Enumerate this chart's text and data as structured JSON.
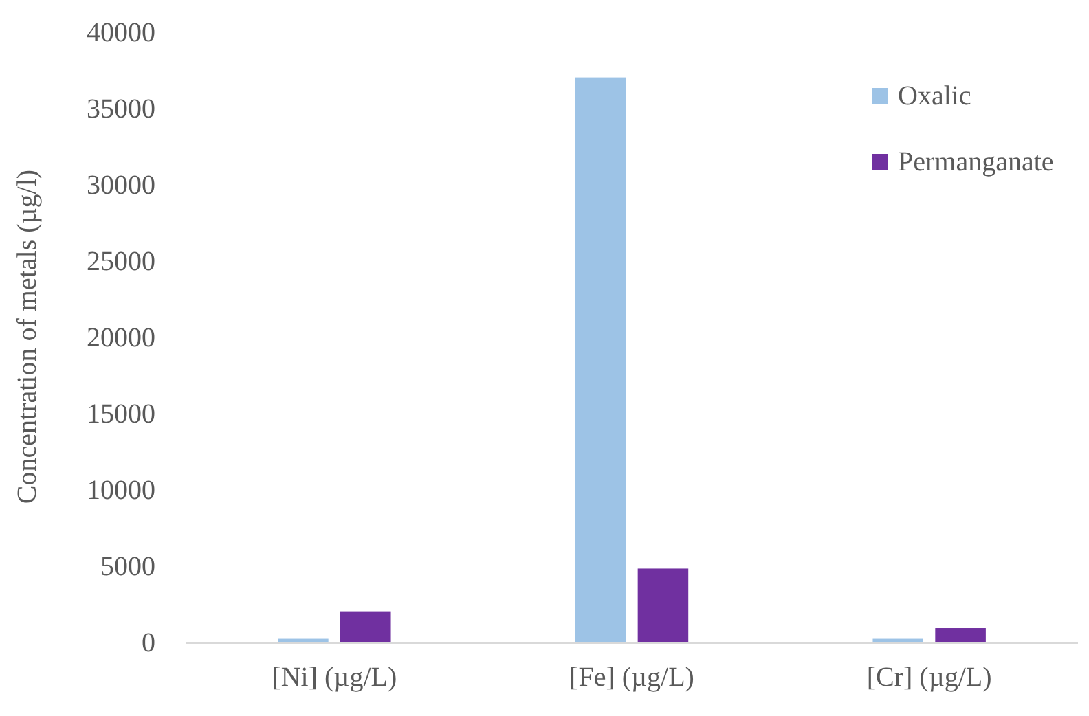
{
  "chart_data": {
    "type": "bar",
    "ylabel": "Concentration of metals (µg/l)",
    "categories": [
      "[Ni] (µg/L)",
      "[Fe] (µg/L)",
      "[Cr] (µg/L)"
    ],
    "series": [
      {
        "name": "Oxalic",
        "color": "#9dc3e6",
        "values": [
          200,
          37000,
          200
        ]
      },
      {
        "name": "Permanganate",
        "color": "#7030a0",
        "values": [
          2000,
          4800,
          900
        ]
      }
    ],
    "ylim": [
      0,
      40000
    ],
    "yticks": [
      0,
      5000,
      10000,
      15000,
      20000,
      25000,
      30000,
      35000,
      40000
    ],
    "grid": false,
    "legend": "top right"
  }
}
